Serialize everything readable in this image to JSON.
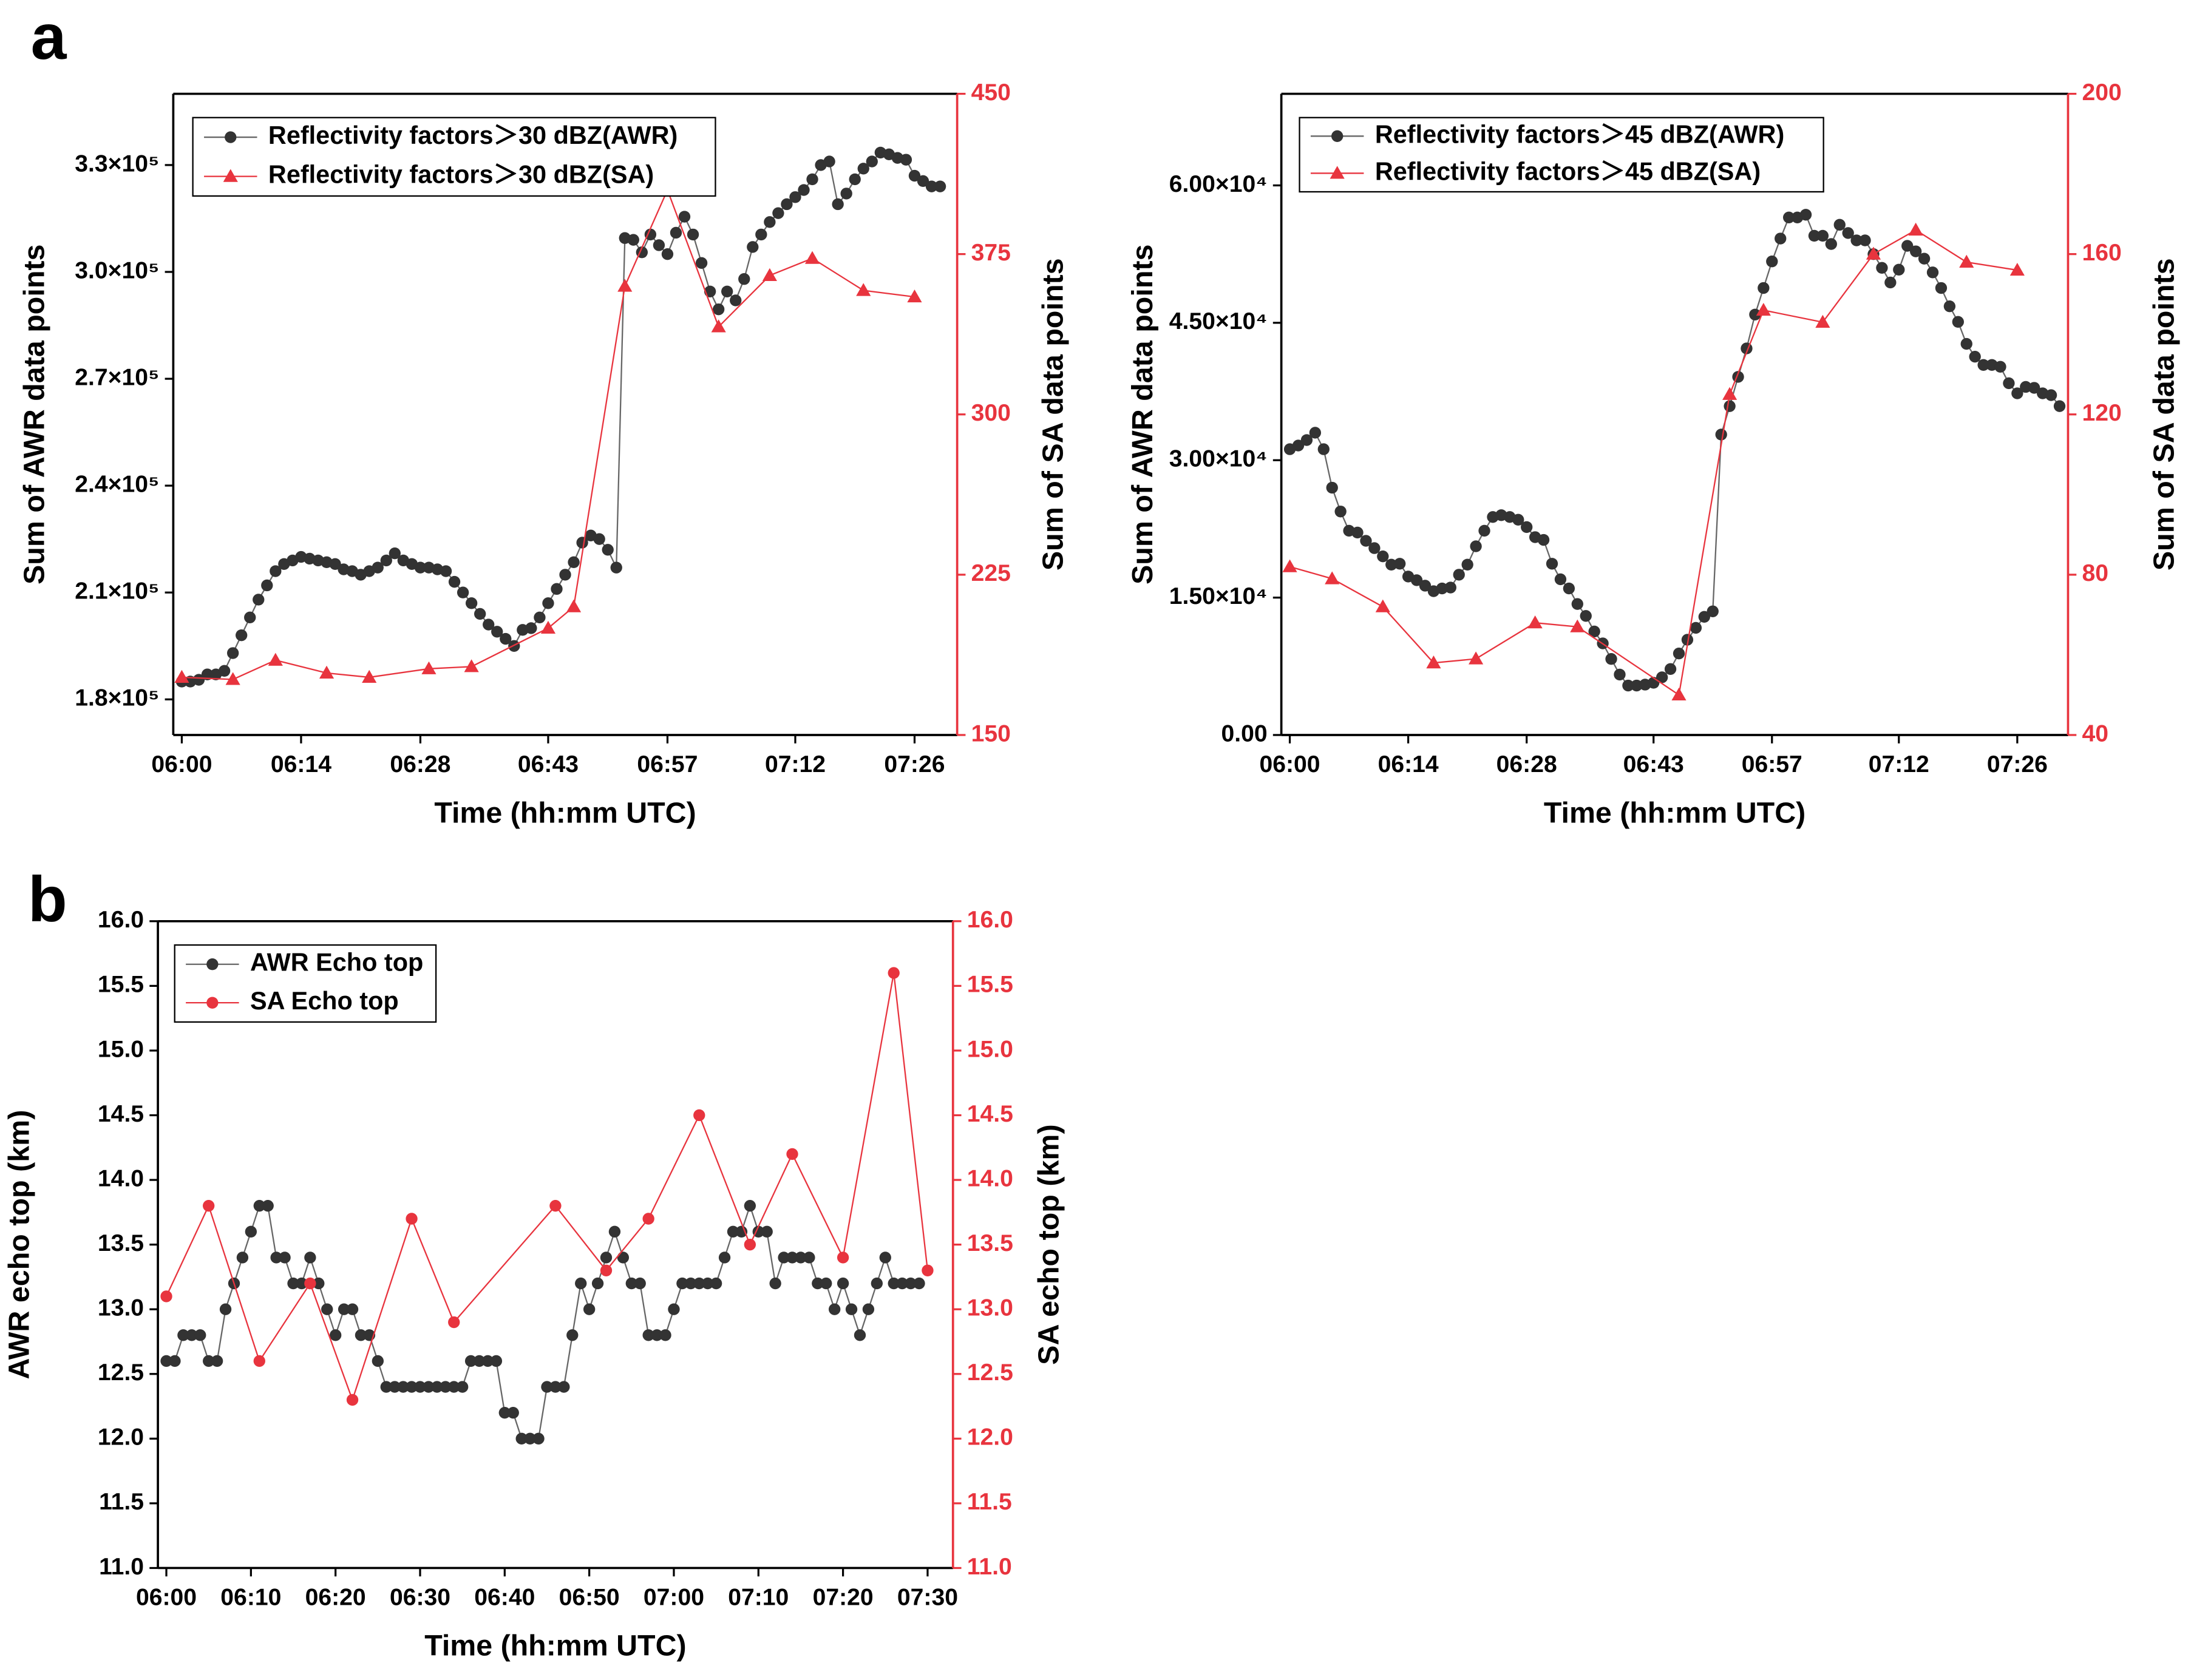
{
  "panel_labels": [
    "a",
    "b"
  ],
  "chart_data": [
    {
      "type": "line",
      "x_label": "Time (hh:mm UTC)",
      "y_label": "Sum of AWR data points",
      "y2_label": "Sum of SA data points",
      "xlim": [
        "05:59",
        "07:31"
      ],
      "xticks": [
        "06:00",
        "06:14",
        "06:28",
        "06:43",
        "06:57",
        "07:12",
        "07:26"
      ],
      "ylim": [
        170000,
        350000
      ],
      "yticks": [
        {
          "value": 180000,
          "label": "1.8×10⁵"
        },
        {
          "value": 210000,
          "label": "2.1×10⁵"
        },
        {
          "value": 240000,
          "label": "2.4×10⁵"
        },
        {
          "value": 270000,
          "label": "2.7×10⁵"
        },
        {
          "value": 300000,
          "label": "3.0×10⁵"
        },
        {
          "value": 330000,
          "label": "3.3×10⁵"
        }
      ],
      "y2lim": [
        150,
        450
      ],
      "y2ticks": [
        150,
        225,
        300,
        375,
        450
      ],
      "legend": "upper left",
      "series": [
        {
          "name": "Reflectivity factors＞30 dBZ(AWR)",
          "color": "#333333",
          "marker": "circle",
          "x": [
            "06:00",
            "06:01",
            "06:02",
            "06:03",
            "06:04",
            "06:05",
            "06:06",
            "06:07",
            "06:08",
            "06:09",
            "06:10",
            "06:11",
            "06:12",
            "06:13",
            "06:14",
            "06:15",
            "06:16",
            "06:17",
            "06:18",
            "06:19",
            "06:20",
            "06:21",
            "06:22",
            "06:23",
            "06:24",
            "06:25",
            "06:26",
            "06:27",
            "06:28",
            "06:29",
            "06:30",
            "06:31",
            "06:32",
            "06:33",
            "06:34",
            "06:35",
            "06:36",
            "06:37",
            "06:38",
            "06:39",
            "06:40",
            "06:41",
            "06:42",
            "06:43",
            "06:44",
            "06:45",
            "06:46",
            "06:47",
            "06:48",
            "06:49",
            "06:50",
            "06:51",
            "06:52",
            "06:53",
            "06:54",
            "06:55",
            "06:56",
            "06:57",
            "06:58",
            "06:59",
            "07:00",
            "07:01",
            "07:02",
            "07:03",
            "07:04",
            "07:05",
            "07:06",
            "07:07",
            "07:08",
            "07:09",
            "07:10",
            "07:11",
            "07:12",
            "07:13",
            "07:14",
            "07:15",
            "07:16",
            "07:17",
            "07:18",
            "07:19",
            "07:20",
            "07:21",
            "07:22",
            "07:23",
            "07:24",
            "07:25",
            "07:26",
            "07:27",
            "07:28",
            "07:29"
          ],
          "values": [
            185000,
            185000,
            185500,
            187000,
            187000,
            188000,
            193000,
            198000,
            203000,
            208000,
            212000,
            216000,
            218000,
            219000,
            220000,
            219500,
            219000,
            218500,
            218000,
            216500,
            216000,
            215000,
            216000,
            217000,
            219000,
            221000,
            219000,
            218000,
            217000,
            217000,
            216500,
            216000,
            213000,
            210000,
            207000,
            204000,
            201000,
            199000,
            197000,
            195000,
            199500,
            200000,
            203000,
            207000,
            211000,
            215000,
            218500,
            224000,
            226000,
            225000,
            222000,
            217000,
            309500,
            309000,
            305500,
            310500,
            307500,
            305000,
            311000,
            315500,
            310500,
            302500,
            294500,
            289500,
            294500,
            292000,
            298000,
            307000,
            310500,
            314000,
            316500,
            319000,
            321000,
            323000,
            326000,
            330000,
            331000,
            319000,
            322000,
            326000,
            329000,
            331000,
            333500,
            333000,
            332000,
            331500,
            327000,
            325500,
            324000,
            324000
          ]
        },
        {
          "name": "Reflectivity factors＞30 dBZ(SA)",
          "color": "#e8343e",
          "marker": "triangle",
          "axis": "y2",
          "x": [
            "06:00",
            "06:06",
            "06:11",
            "06:17",
            "06:22",
            "06:29",
            "06:34",
            "06:43",
            "06:46",
            "06:52",
            "06:57",
            "07:03",
            "07:09",
            "07:14",
            "07:20",
            "07:26"
          ],
          "values": [
            177,
            176,
            185,
            179,
            177,
            181,
            182,
            200,
            210,
            360,
            405,
            341,
            365,
            373,
            358,
            355
          ]
        }
      ]
    },
    {
      "type": "line",
      "x_label": "Time (hh:mm UTC)",
      "y_label": "Sum of AWR data points",
      "y2_label": "Sum of SA data points",
      "xlim": [
        "05:59",
        "07:32"
      ],
      "xticks": [
        "06:00",
        "06:14",
        "06:28",
        "06:43",
        "06:57",
        "07:12",
        "07:26"
      ],
      "ylim": [
        0,
        70000
      ],
      "yticks": [
        {
          "value": 0,
          "label": "0.00"
        },
        {
          "value": 15000,
          "label": "1.50×10⁴"
        },
        {
          "value": 30000,
          "label": "3.00×10⁴"
        },
        {
          "value": 45000,
          "label": "4.50×10⁴"
        },
        {
          "value": 60000,
          "label": "6.00×10⁴"
        }
      ],
      "y2lim": [
        40,
        200
      ],
      "y2ticks": [
        40,
        80,
        120,
        160,
        200
      ],
      "legend": "upper left",
      "series": [
        {
          "name": "Reflectivity factors＞45 dBZ(AWR)",
          "color": "#333333",
          "marker": "circle",
          "x": [
            "06:00",
            "06:01",
            "06:02",
            "06:03",
            "06:04",
            "06:05",
            "06:06",
            "06:07",
            "06:08",
            "06:09",
            "06:10",
            "06:11",
            "06:12",
            "06:13",
            "06:14",
            "06:15",
            "06:16",
            "06:17",
            "06:18",
            "06:19",
            "06:20",
            "06:21",
            "06:22",
            "06:23",
            "06:24",
            "06:25",
            "06:26",
            "06:27",
            "06:28",
            "06:29",
            "06:30",
            "06:31",
            "06:32",
            "06:33",
            "06:34",
            "06:35",
            "06:36",
            "06:37",
            "06:38",
            "06:39",
            "06:40",
            "06:41",
            "06:42",
            "06:43",
            "06:44",
            "06:45",
            "06:46",
            "06:47",
            "06:48",
            "06:49",
            "06:50",
            "06:51",
            "06:52",
            "06:53",
            "06:54",
            "06:55",
            "06:56",
            "06:57",
            "06:58",
            "06:59",
            "07:00",
            "07:01",
            "07:02",
            "07:03",
            "07:04",
            "07:05",
            "07:06",
            "07:07",
            "07:08",
            "07:09",
            "07:10",
            "07:11",
            "07:12",
            "07:13",
            "07:14",
            "07:15",
            "07:16",
            "07:17",
            "07:18",
            "07:19",
            "07:20",
            "07:21",
            "07:22",
            "07:23",
            "07:24",
            "07:25",
            "07:26",
            "07:27",
            "07:28",
            "07:29",
            "07:30",
            "07:31"
          ],
          "values": [
            31200,
            31600,
            32200,
            33000,
            31200,
            27000,
            24400,
            22300,
            22100,
            21200,
            20400,
            19500,
            18600,
            18700,
            17300,
            16900,
            16300,
            15700,
            16000,
            16100,
            17500,
            18600,
            20600,
            22300,
            23800,
            24000,
            23800,
            23500,
            22700,
            21600,
            21300,
            18700,
            17000,
            16000,
            14300,
            13000,
            11300,
            10000,
            8300,
            6600,
            5400,
            5400,
            5500,
            5700,
            6300,
            7200,
            8900,
            10400,
            11700,
            12900,
            13500,
            32800,
            35900,
            39100,
            42200,
            45900,
            48800,
            51700,
            54200,
            56500,
            56500,
            56800,
            54500,
            54500,
            53600,
            55700,
            54800,
            54000,
            54000,
            52500,
            51000,
            49400,
            50800,
            53400,
            52800,
            52000,
            50500,
            48800,
            46800,
            45100,
            42700,
            41300,
            40400,
            40400,
            40200,
            38400,
            37300,
            38000,
            37900,
            37300,
            37100,
            35900
          ]
        },
        {
          "name": "Reflectivity factors＞45 dBZ(SA)",
          "color": "#e8343e",
          "marker": "triangle",
          "axis": "y2",
          "x": [
            "06:00",
            "06:05",
            "06:11",
            "06:17",
            "06:22",
            "06:29",
            "06:34",
            "06:46",
            "06:52",
            "06:56",
            "07:03",
            "07:09",
            "07:14",
            "07:20",
            "07:26"
          ],
          "values": [
            82,
            79,
            72,
            58,
            59,
            68,
            67,
            50,
            125,
            146,
            143,
            160,
            166,
            158,
            156
          ]
        }
      ]
    },
    {
      "type": "line",
      "x_label": "Time (hh:mm UTC)",
      "y_label": "AWR echo top (km)",
      "y2_label": "SA echo top (km)",
      "xlim": [
        "05:59",
        "07:33"
      ],
      "xticks": [
        "06:00",
        "06:10",
        "06:20",
        "06:30",
        "06:40",
        "06:50",
        "07:00",
        "07:10",
        "07:20",
        "07:30"
      ],
      "ylim": [
        11,
        16
      ],
      "yticks": [
        {
          "value": 11,
          "label": "11.0"
        },
        11.5,
        {
          "value": 12,
          "label": "12.0"
        },
        12.5,
        {
          "value": 13,
          "label": "13.0"
        },
        13.5,
        {
          "value": 14,
          "label": "14.0"
        },
        14.5,
        {
          "value": 15,
          "label": "15.0"
        },
        15.5,
        {
          "value": 16,
          "label": "16.0"
        }
      ],
      "y2lim": [
        11,
        16
      ],
      "y2ticks": [
        {
          "value": 11,
          "label": "11.0"
        },
        11.5,
        {
          "value": 12,
          "label": "12.0"
        },
        12.5,
        {
          "value": 13,
          "label": "13.0"
        },
        13.5,
        {
          "value": 14,
          "label": "14.0"
        },
        14.5,
        {
          "value": 15,
          "label": "15.0"
        },
        15.5,
        {
          "value": 16,
          "label": "16.0"
        }
      ],
      "legend": "upper left",
      "series": [
        {
          "name": "AWR Echo top",
          "color": "#333333",
          "marker": "circle",
          "x": [
            "06:00",
            "06:01",
            "06:02",
            "06:03",
            "06:04",
            "06:05",
            "06:06",
            "06:07",
            "06:08",
            "06:09",
            "06:10",
            "06:11",
            "06:12",
            "06:13",
            "06:14",
            "06:15",
            "06:16",
            "06:17",
            "06:18",
            "06:19",
            "06:20",
            "06:21",
            "06:22",
            "06:23",
            "06:24",
            "06:25",
            "06:26",
            "06:27",
            "06:28",
            "06:29",
            "06:30",
            "06:31",
            "06:32",
            "06:33",
            "06:34",
            "06:35",
            "06:36",
            "06:37",
            "06:38",
            "06:39",
            "06:40",
            "06:41",
            "06:42",
            "06:43",
            "06:44",
            "06:45",
            "06:46",
            "06:47",
            "06:48",
            "06:49",
            "06:50",
            "06:51",
            "06:52",
            "06:53",
            "06:54",
            "06:55",
            "06:56",
            "06:57",
            "06:58",
            "06:59",
            "07:00",
            "07:01",
            "07:02",
            "07:03",
            "07:04",
            "07:05",
            "07:06",
            "07:07",
            "07:08",
            "07:09",
            "07:10",
            "07:11",
            "07:12",
            "07:13",
            "07:14",
            "07:15",
            "07:16",
            "07:17",
            "07:18",
            "07:19",
            "07:20",
            "07:21",
            "07:22",
            "07:23",
            "07:24",
            "07:25",
            "07:26",
            "07:27",
            "07:28",
            "07:29"
          ],
          "values": [
            12.6,
            12.6,
            12.8,
            12.8,
            12.8,
            12.6,
            12.6,
            13.0,
            13.2,
            13.4,
            13.6,
            13.8,
            13.8,
            13.4,
            13.4,
            13.2,
            13.2,
            13.4,
            13.2,
            13.0,
            12.8,
            13.0,
            13.0,
            12.8,
            12.8,
            12.6,
            12.4,
            12.4,
            12.4,
            12.4,
            12.4,
            12.4,
            12.4,
            12.4,
            12.4,
            12.4,
            12.6,
            12.6,
            12.6,
            12.6,
            12.2,
            12.2,
            12.0,
            12.0,
            12.0,
            12.4,
            12.4,
            12.4,
            12.8,
            13.2,
            13.0,
            13.2,
            13.4,
            13.6,
            13.4,
            13.2,
            13.2,
            12.8,
            12.8,
            12.8,
            13.0,
            13.2,
            13.2,
            13.2,
            13.2,
            13.2,
            13.4,
            13.6,
            13.6,
            13.8,
            13.6,
            13.6,
            13.2,
            13.4,
            13.4,
            13.4,
            13.4,
            13.2,
            13.2,
            13.0,
            13.2,
            13.0,
            12.8,
            13.0,
            13.2,
            13.4,
            13.2,
            13.2,
            13.2,
            13.2
          ]
        },
        {
          "name": "SA Echo top",
          "color": "#e8343e",
          "marker": "circle",
          "axis": "y2",
          "x": [
            "06:00",
            "06:05",
            "06:11",
            "06:17",
            "06:22",
            "06:29",
            "06:34",
            "06:46",
            "06:52",
            "06:57",
            "07:03",
            "07:09",
            "07:14",
            "07:20",
            "07:26",
            "07:30"
          ],
          "values": [
            13.1,
            13.8,
            12.6,
            13.2,
            12.3,
            13.7,
            12.9,
            13.8,
            13.3,
            13.7,
            14.5,
            13.5,
            14.2,
            13.4,
            15.6,
            13.3
          ]
        }
      ]
    }
  ]
}
